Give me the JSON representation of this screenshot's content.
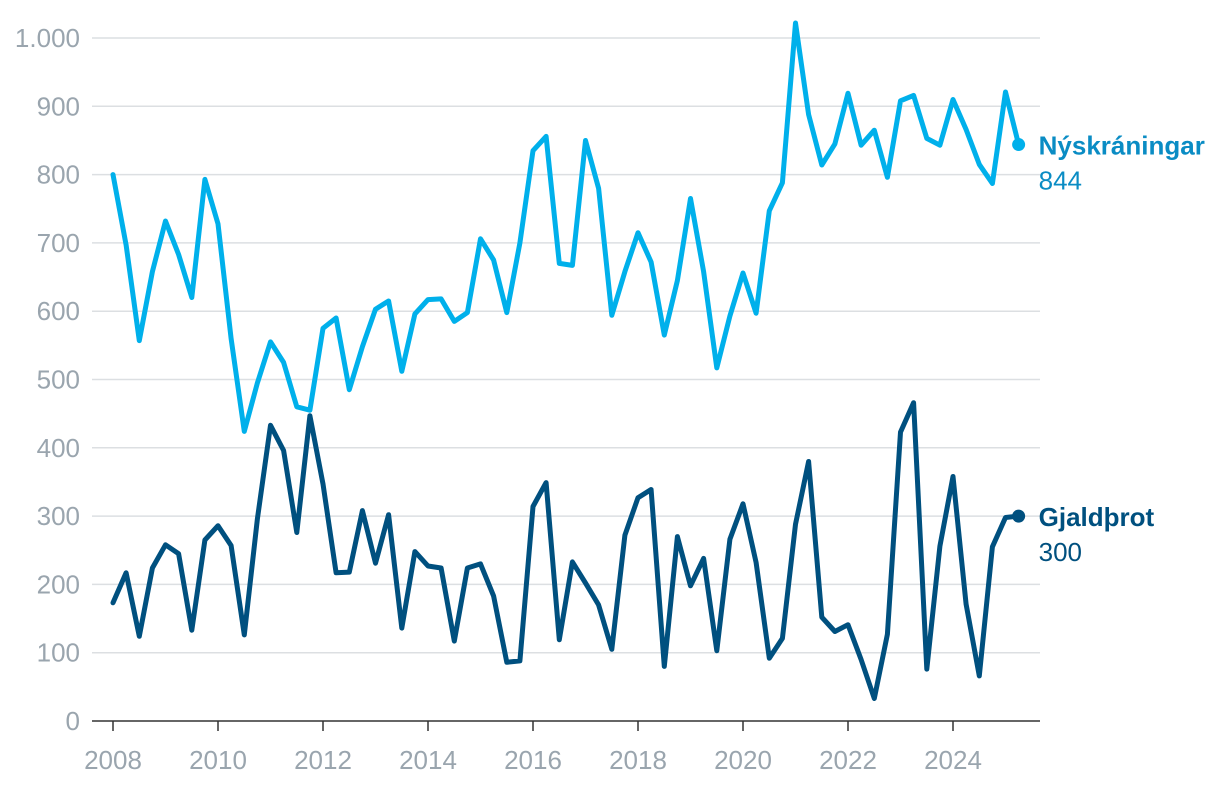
{
  "chart_data": {
    "type": "line",
    "title": "",
    "xlabel": "",
    "ylabel": "",
    "ylim": [
      0,
      1000
    ],
    "yticks": [
      0,
      100,
      200,
      300,
      400,
      500,
      600,
      700,
      800,
      900,
      1000
    ],
    "ytick_labels": [
      "0",
      "100",
      "200",
      "300",
      "400",
      "500",
      "600",
      "700",
      "800",
      "900",
      "1.000"
    ],
    "xlim": [
      2008,
      2025.5
    ],
    "xticks": [
      2008,
      2010,
      2012,
      2014,
      2016,
      2018,
      2020,
      2022,
      2024
    ],
    "xtick_labels": [
      "2008",
      "2010",
      "2012",
      "2014",
      "2016",
      "2018",
      "2020",
      "2022",
      "2024"
    ],
    "grid": true,
    "x_start": 2008,
    "x_step": 0.25,
    "series": [
      {
        "name": "Nýskráningar",
        "last_label": "844",
        "color": "#00b0eb",
        "label_color": "#0a8cc4",
        "values": [
          800,
          697,
          557,
          658,
          732,
          683,
          620,
          793,
          728,
          560,
          424,
          495,
          555,
          525,
          460,
          455,
          575,
          590,
          485,
          548,
          603,
          615,
          512,
          596,
          617,
          618,
          585,
          598,
          706,
          675,
          598,
          700,
          835,
          856,
          670,
          667,
          850,
          780,
          594,
          658,
          715,
          672,
          565,
          645,
          765,
          658,
          517,
          593,
          656,
          597,
          747,
          788,
          1022,
          888,
          814,
          845,
          919,
          843,
          865,
          796,
          908,
          916,
          853,
          843,
          910,
          866,
          815,
          787,
          921,
          844
        ]
      },
      {
        "name": "Gjaldþrot",
        "last_label": "300",
        "color": "#00507f",
        "label_color": "#00507f",
        "values": [
          173,
          217,
          124,
          224,
          258,
          245,
          133,
          265,
          286,
          257,
          126,
          296,
          433,
          396,
          276,
          447,
          347,
          217,
          218,
          308,
          231,
          302,
          136,
          248,
          227,
          224,
          117,
          224,
          230,
          183,
          86,
          88,
          314,
          349,
          119,
          233,
          202,
          170,
          105,
          272,
          327,
          339,
          80,
          270,
          198,
          238,
          103,
          266,
          318,
          232,
          92,
          121,
          288,
          380,
          152,
          131,
          141,
          90,
          33,
          127,
          423,
          466,
          76,
          256,
          358,
          171,
          66,
          255,
          298,
          300
        ]
      }
    ]
  }
}
